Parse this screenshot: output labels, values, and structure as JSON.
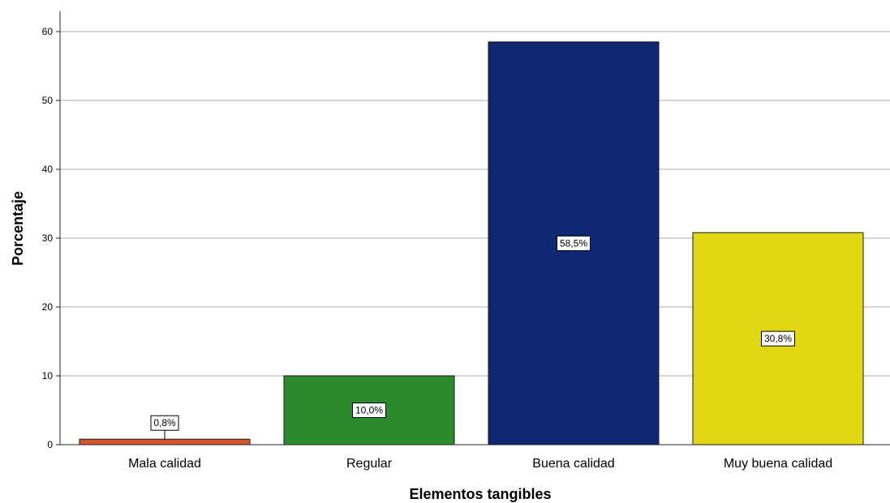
{
  "chart_data": {
    "type": "bar",
    "xlabel": "Elementos tangibles",
    "ylabel": "Porcentaje",
    "ylim": [
      0,
      63
    ],
    "yticks": [
      "0",
      "10",
      "20",
      "30",
      "40",
      "50",
      "60"
    ],
    "grid": true,
    "categories": [
      "Mala calidad",
      "Regular",
      "Buena calidad",
      "Muy buena calidad"
    ],
    "values": [
      0.8,
      10.0,
      58.5,
      30.8
    ],
    "data_labels": [
      "0,8%",
      "10,0%",
      "58,5%",
      "30,8%"
    ],
    "colors": [
      "#d4532b",
      "#2a8a2c",
      "#0d2870",
      "#e2d712"
    ]
  }
}
